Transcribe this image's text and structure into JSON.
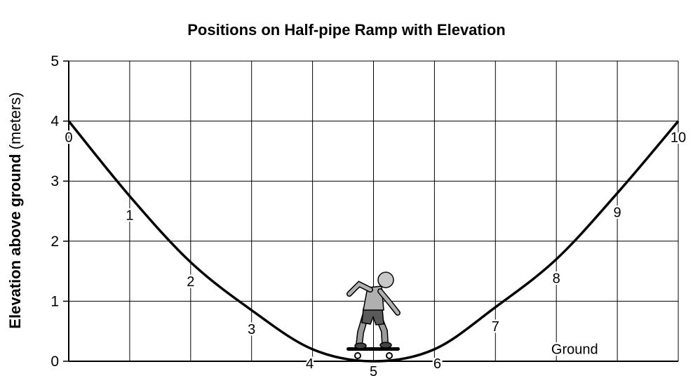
{
  "chart_data": {
    "type": "line",
    "title": "Positions on Half-pipe Ramp with Elevation",
    "ylabel": "Elevation above ground",
    "ylabel_unit": "(meters)",
    "xlabel": "",
    "xlim": [
      0,
      10
    ],
    "ylim": [
      0,
      5
    ],
    "ytick_labels": [
      "0",
      "1",
      "2",
      "3",
      "4",
      "5"
    ],
    "grid": true,
    "x": [
      0,
      1,
      2,
      3,
      4,
      5,
      6,
      7,
      8,
      9,
      10
    ],
    "y": [
      4.0,
      2.75,
      1.65,
      0.85,
      0.2,
      0.0,
      0.2,
      0.9,
      1.7,
      2.8,
      4.0
    ],
    "position_labels": [
      "0",
      "1",
      "2",
      "3",
      "4",
      "5",
      "6",
      "7",
      "8",
      "9",
      "10"
    ],
    "annotations": [
      {
        "text": "Ground",
        "x": 8.3,
        "y": 0.1
      }
    ],
    "illustration": "skateboarder-figure"
  }
}
